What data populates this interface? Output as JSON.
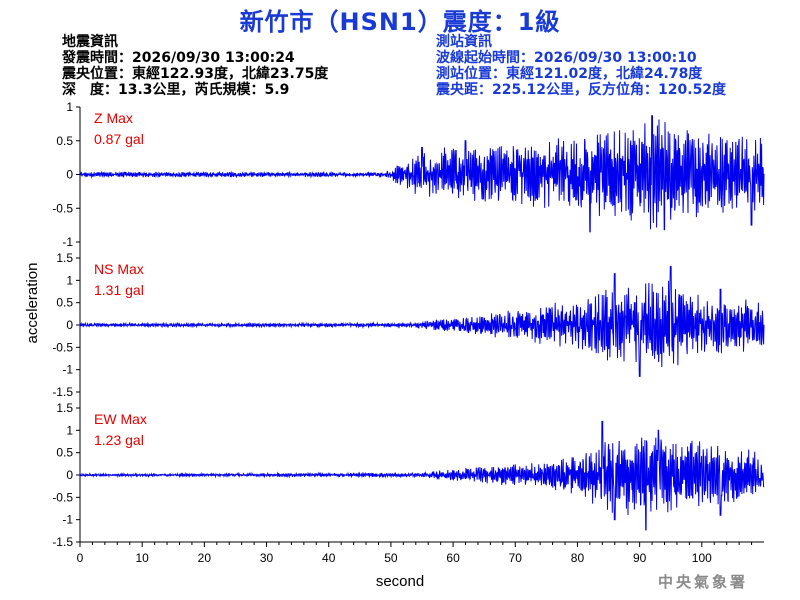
{
  "title": "新竹市（HSN1）震度：1級",
  "quake_info": {
    "heading": "地震資訊",
    "time": "發震時間：2026/09/30 13:00:24",
    "location": "震央位置：東經122.93度，北緯23.75度",
    "depth_magnitude": "深　度：13.3公里，芮氏規模：5.9"
  },
  "station_info": {
    "heading": "測站資訊",
    "wave_start": "波線起始時間：2026/09/30 13:00:10",
    "location": "測站位置：東經121.02度，北緯24.78度",
    "distance_azimuth": "震央距：225.12公里，反方位角：120.52度"
  },
  "agency": "中央氣象署",
  "colors": {
    "title": "#1a3ad6",
    "trace": "#0000ee",
    "max_label": "#e60000",
    "station_info": "#1a3ad6"
  },
  "chart_data": {
    "type": "line",
    "xlabel": "second",
    "ylabel": "acceleration",
    "xlim": [
      0,
      110
    ],
    "x_ticks": [
      0,
      10,
      20,
      30,
      40,
      50,
      60,
      70,
      80,
      90,
      100
    ],
    "panels": [
      {
        "component": "Z",
        "max_label": "Z Max",
        "max_value": "0.87 gal",
        "ylim": [
          -1,
          1
        ],
        "y_ticks": [
          1,
          0.5,
          0,
          -0.5,
          -1
        ],
        "envelope": [
          [
            0,
            0.04
          ],
          [
            49,
            0.04
          ],
          [
            52,
            0.2
          ],
          [
            55,
            0.35
          ],
          [
            60,
            0.45
          ],
          [
            70,
            0.45
          ],
          [
            80,
            0.6
          ],
          [
            92,
            0.87
          ],
          [
            100,
            0.65
          ],
          [
            110,
            0.55
          ]
        ],
        "peaks": [
          [
            55,
            0.4
          ],
          [
            62,
            0.5
          ],
          [
            82,
            -0.85
          ],
          [
            92,
            0.87
          ],
          [
            94,
            -0.82
          ],
          [
            108,
            -0.75
          ]
        ]
      },
      {
        "component": "NS",
        "max_label": "NS Max",
        "max_value": "1.31 gal",
        "ylim": [
          -1.5,
          1.5
        ],
        "y_ticks": [
          1.5,
          1,
          0.5,
          0,
          -0.5,
          -1,
          -1.5
        ],
        "envelope": [
          [
            0,
            0.04
          ],
          [
            52,
            0.05
          ],
          [
            56,
            0.1
          ],
          [
            62,
            0.2
          ],
          [
            70,
            0.35
          ],
          [
            80,
            0.6
          ],
          [
            86,
            0.9
          ],
          [
            95,
            1.0
          ],
          [
            102,
            0.7
          ],
          [
            110,
            0.55
          ]
        ],
        "peaks": [
          [
            86,
            1.15
          ],
          [
            90,
            -1.15
          ],
          [
            95,
            1.31
          ],
          [
            103,
            0.8
          ]
        ]
      },
      {
        "component": "EW",
        "max_label": "EW Max",
        "max_value": "1.23 gal",
        "ylim": [
          -1.5,
          1.5
        ],
        "y_ticks": [
          1.5,
          1,
          0.5,
          0,
          -0.5,
          -1,
          -1.5
        ],
        "envelope": [
          [
            0,
            0.03
          ],
          [
            55,
            0.05
          ],
          [
            58,
            0.12
          ],
          [
            65,
            0.2
          ],
          [
            75,
            0.3
          ],
          [
            80,
            0.45
          ],
          [
            84,
            0.9
          ],
          [
            92,
            1.0
          ],
          [
            100,
            0.8
          ],
          [
            110,
            0.5
          ]
        ],
        "peaks": [
          [
            84,
            1.2
          ],
          [
            86,
            -1.0
          ],
          [
            91,
            -1.23
          ],
          [
            93,
            1.0
          ],
          [
            103,
            -0.9
          ]
        ]
      }
    ]
  }
}
